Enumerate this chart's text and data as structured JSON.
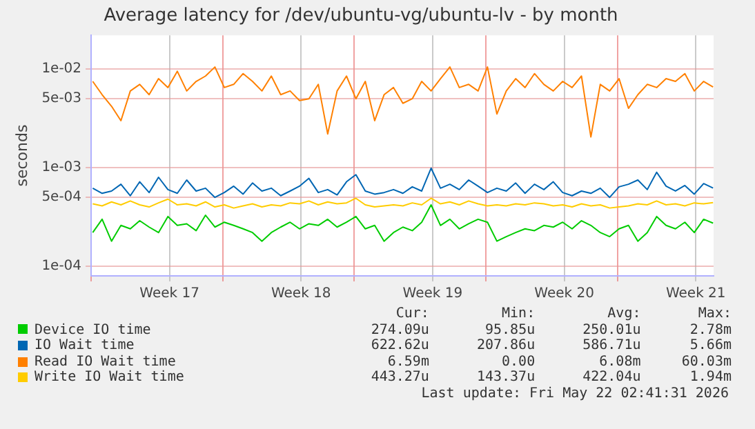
{
  "chart_data": {
    "type": "line",
    "title": "Average latency for /dev/ubuntu-vg/ubuntu-lv - by month",
    "ylabel": "seconds",
    "log": true,
    "grid": true,
    "legend": "bottom",
    "marker": "none",
    "line_style": "solid",
    "x": [
      "2026-04-19T02:00",
      "2026-04-19T14:00",
      "2026-04-20T02:00",
      "2026-04-20T14:00",
      "2026-04-21T02:00",
      "2026-04-21T14:00",
      "2026-04-22T02:00",
      "2026-04-22T14:00",
      "2026-04-23T02:00",
      "2026-04-23T14:00",
      "2026-04-24T02:00",
      "2026-04-24T14:00",
      "2026-04-25T02:00",
      "2026-04-25T14:00",
      "2026-04-26T02:00",
      "2026-04-26T14:00",
      "2026-04-27T02:00",
      "2026-04-27T14:00",
      "2026-04-28T02:00",
      "2026-04-28T14:00",
      "2026-04-29T02:00",
      "2026-04-29T14:00",
      "2026-04-30T02:00",
      "2026-04-30T14:00",
      "2026-05-01T02:00",
      "2026-05-01T14:00",
      "2026-05-02T02:00",
      "2026-05-02T14:00",
      "2026-05-03T02:00",
      "2026-05-03T14:00",
      "2026-05-04T02:00",
      "2026-05-04T14:00",
      "2026-05-05T02:00",
      "2026-05-05T14:00",
      "2026-05-06T02:00",
      "2026-05-06T14:00",
      "2026-05-07T02:00",
      "2026-05-07T14:00",
      "2026-05-08T02:00",
      "2026-05-08T14:00",
      "2026-05-09T02:00",
      "2026-05-09T14:00",
      "2026-05-10T02:00",
      "2026-05-10T14:00",
      "2026-05-11T02:00",
      "2026-05-11T14:00",
      "2026-05-12T02:00",
      "2026-05-12T14:00",
      "2026-05-13T02:00",
      "2026-05-13T14:00",
      "2026-05-14T02:00",
      "2026-05-14T14:00",
      "2026-05-15T02:00",
      "2026-05-15T14:00",
      "2026-05-16T02:00",
      "2026-05-16T14:00",
      "2026-05-17T02:00",
      "2026-05-17T14:00",
      "2026-05-18T02:00",
      "2026-05-18T14:00",
      "2026-05-19T02:00",
      "2026-05-19T14:00",
      "2026-05-20T02:00",
      "2026-05-20T14:00",
      "2026-05-21T02:00",
      "2026-05-21T14:00",
      "2026-05-22T02:00"
    ],
    "xlim": [
      "2026-04-19T00:00",
      "2026-05-22T02:41"
    ],
    "xticks": [
      {
        "value": "2026-04-19T00:00",
        "label": null
      },
      {
        "value": "2026-04-23T04:00",
        "label": "Week 17"
      },
      {
        "value": "2026-04-26T00:00",
        "label": null
      },
      {
        "value": "2026-04-30T04:00",
        "label": "Week 18"
      },
      {
        "value": "2026-05-03T00:00",
        "label": null
      },
      {
        "value": "2026-05-07T04:00",
        "label": "Week 19"
      },
      {
        "value": "2026-05-10T00:00",
        "label": null
      },
      {
        "value": "2026-05-14T04:00",
        "label": "Week 20"
      },
      {
        "value": "2026-05-17T00:00",
        "label": null
      },
      {
        "value": "2026-05-21T04:00",
        "label": "Week 21"
      }
    ],
    "ylim": [
      8e-05,
      0.022
    ],
    "yticks": [
      {
        "value": 0.0001,
        "label": "1e-04"
      },
      {
        "value": 0.0005,
        "label": "5e-04"
      },
      {
        "value": 0.001,
        "label": "1e-03"
      },
      {
        "value": 0.005,
        "label": "5e-03"
      },
      {
        "value": 0.01,
        "label": "1e-02"
      }
    ],
    "series": [
      {
        "name": "Device IO time",
        "color": "#00cc00",
        "values": [
          0.00022,
          0.0003,
          0.00018,
          0.00026,
          0.00024,
          0.00029,
          0.00025,
          0.00022,
          0.00032,
          0.00026,
          0.00027,
          0.00023,
          0.00033,
          0.00025,
          0.00028,
          0.00026,
          0.00024,
          0.00022,
          0.00018,
          0.00022,
          0.00025,
          0.00028,
          0.00024,
          0.00027,
          0.00026,
          0.0003,
          0.00025,
          0.00028,
          0.00032,
          0.00024,
          0.00026,
          0.00018,
          0.00022,
          0.00025,
          0.00023,
          0.00028,
          0.00042,
          0.00026,
          0.0003,
          0.00024,
          0.00027,
          0.0003,
          0.00028,
          0.00018,
          0.0002,
          0.00022,
          0.00024,
          0.00023,
          0.00026,
          0.00025,
          0.00028,
          0.00024,
          0.00029,
          0.00026,
          0.00022,
          0.0002,
          0.00024,
          0.00026,
          0.00018,
          0.00022,
          0.00032,
          0.00026,
          0.00024,
          0.00028,
          0.00022,
          0.0003,
          0.000274
        ]
      },
      {
        "name": "IO Wait time",
        "color": "#0066b3",
        "values": [
          0.00062,
          0.00055,
          0.00058,
          0.00068,
          0.00052,
          0.00072,
          0.00056,
          0.0008,
          0.0006,
          0.00055,
          0.00075,
          0.00058,
          0.00062,
          0.0005,
          0.00056,
          0.00065,
          0.00054,
          0.0007,
          0.00058,
          0.00062,
          0.00052,
          0.00058,
          0.00065,
          0.00078,
          0.00056,
          0.0006,
          0.00053,
          0.00072,
          0.00085,
          0.00058,
          0.00054,
          0.00056,
          0.0006,
          0.00055,
          0.00064,
          0.00058,
          0.00099,
          0.00062,
          0.00068,
          0.0006,
          0.00075,
          0.00065,
          0.00056,
          0.00062,
          0.00058,
          0.0007,
          0.00055,
          0.00068,
          0.0006,
          0.00072,
          0.00056,
          0.00052,
          0.00058,
          0.00055,
          0.00062,
          0.0005,
          0.00064,
          0.00068,
          0.00075,
          0.0006,
          0.0009,
          0.00065,
          0.00058,
          0.00066,
          0.00054,
          0.00069,
          0.000623
        ]
      },
      {
        "name": "Read IO Wait time",
        "color": "#ff8000",
        "values": [
          0.0075,
          0.0055,
          0.0042,
          0.003,
          0.006,
          0.007,
          0.0055,
          0.008,
          0.0065,
          0.0095,
          0.006,
          0.0075,
          0.0085,
          0.0105,
          0.0065,
          0.007,
          0.009,
          0.0075,
          0.006,
          0.0085,
          0.0055,
          0.006,
          0.0048,
          0.005,
          0.007,
          0.0022,
          0.006,
          0.0085,
          0.005,
          0.0075,
          0.003,
          0.0055,
          0.0065,
          0.0045,
          0.005,
          0.0075,
          0.006,
          0.008,
          0.0105,
          0.0065,
          0.007,
          0.006,
          0.0105,
          0.0035,
          0.006,
          0.008,
          0.0065,
          0.009,
          0.007,
          0.006,
          0.0075,
          0.0065,
          0.0085,
          0.00205,
          0.007,
          0.006,
          0.008,
          0.004,
          0.0055,
          0.007,
          0.0065,
          0.008,
          0.0075,
          0.009,
          0.006,
          0.0075,
          0.00659
        ]
      },
      {
        "name": "Write IO Wait time",
        "color": "#ffcc00",
        "values": [
          0.00043,
          0.00041,
          0.00045,
          0.00042,
          0.00046,
          0.00042,
          0.0004,
          0.00044,
          0.00048,
          0.00042,
          0.00043,
          0.00041,
          0.00045,
          0.0004,
          0.00042,
          0.00039,
          0.00041,
          0.00043,
          0.0004,
          0.00042,
          0.00041,
          0.00044,
          0.00043,
          0.00046,
          0.00042,
          0.00045,
          0.00043,
          0.00044,
          0.00049,
          0.00042,
          0.0004,
          0.00041,
          0.00042,
          0.00041,
          0.00044,
          0.00042,
          0.00049,
          0.00043,
          0.00045,
          0.00042,
          0.00046,
          0.00043,
          0.00041,
          0.00042,
          0.00041,
          0.00043,
          0.00042,
          0.00044,
          0.00043,
          0.00041,
          0.00042,
          0.0004,
          0.00043,
          0.00041,
          0.00042,
          0.00039,
          0.0004,
          0.00041,
          0.00043,
          0.00042,
          0.00046,
          0.00042,
          0.00043,
          0.00041,
          0.00044,
          0.00043,
          0.000443
        ]
      }
    ],
    "annotations": [
      "Cur:",
      "Min:",
      "Avg:",
      "Max:",
      "274.09u",
      "95.85u",
      "250.01u",
      "2.78m",
      "622.62u",
      "207.86u",
      "586.71u",
      "5.66m",
      "6.59m",
      "0.00",
      "6.08m",
      "60.03m",
      "443.27u",
      "143.37u",
      "422.04u",
      "1.94m",
      "Last update: Fri May 22 02:41:31 2026"
    ]
  }
}
